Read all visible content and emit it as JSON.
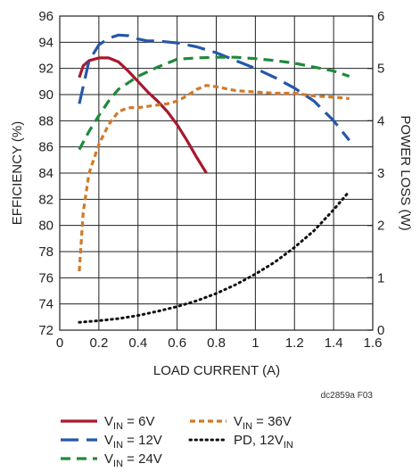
{
  "chart_data": {
    "type": "line",
    "xlabel": "LOAD CURRENT (A)",
    "ylabel": "EFFICIENCY (%)",
    "y2label": "POWER LOSS (W)",
    "xlim": [
      0,
      1.6
    ],
    "ylim": [
      72,
      96
    ],
    "y2lim": [
      0,
      6
    ],
    "x_ticks": [
      "0",
      "0.2",
      "0.4",
      "0.6",
      "0.8",
      "1",
      "1.2",
      "1.4",
      "1.6"
    ],
    "y_ticks": [
      "72",
      "74",
      "76",
      "78",
      "80",
      "82",
      "84",
      "86",
      "88",
      "90",
      "92",
      "94",
      "96"
    ],
    "y2_ticks": [
      "0",
      "1",
      "2",
      "3",
      "4",
      "5",
      "6"
    ],
    "grid": true,
    "credit": "dc2859a F03",
    "series": [
      {
        "name": "V_IN = 6V",
        "legend": {
          "main": "V",
          "sub": "IN",
          "rest": " = 6V"
        },
        "axis": "left",
        "color": "#a8182e",
        "style": "solid",
        "x": [
          0.1,
          0.12,
          0.15,
          0.2,
          0.25,
          0.3,
          0.35,
          0.4,
          0.45,
          0.5,
          0.55,
          0.6,
          0.65,
          0.7,
          0.75
        ],
        "y": [
          91.3,
          92.2,
          92.6,
          92.8,
          92.8,
          92.5,
          91.8,
          91.0,
          90.2,
          89.5,
          88.7,
          87.7,
          86.5,
          85.2,
          84.0
        ]
      },
      {
        "name": "V_IN = 12V",
        "legend": {
          "main": "V",
          "sub": "IN",
          "rest": " = 12V"
        },
        "axis": "left",
        "color": "#2657a8",
        "style": "long-dash",
        "x": [
          0.1,
          0.15,
          0.2,
          0.25,
          0.3,
          0.35,
          0.4,
          0.45,
          0.5,
          0.6,
          0.7,
          0.8,
          0.9,
          1.0,
          1.1,
          1.2,
          1.3,
          1.4,
          1.48
        ],
        "y": [
          89.3,
          92.6,
          93.8,
          94.3,
          94.55,
          94.5,
          94.25,
          94.1,
          94.1,
          93.95,
          93.65,
          93.2,
          92.6,
          92.0,
          91.3,
          90.5,
          89.5,
          88.0,
          86.5
        ]
      },
      {
        "name": "V_IN = 24V",
        "legend": {
          "main": "V",
          "sub": "IN",
          "rest": " = 24V"
        },
        "axis": "left",
        "color": "#1e8a3a",
        "style": "dash",
        "x": [
          0.1,
          0.15,
          0.2,
          0.25,
          0.3,
          0.35,
          0.4,
          0.5,
          0.6,
          0.7,
          0.8,
          0.9,
          1.0,
          1.1,
          1.2,
          1.3,
          1.4,
          1.48
        ],
        "y": [
          85.8,
          87.2,
          88.4,
          89.5,
          90.4,
          90.9,
          91.4,
          92.1,
          92.7,
          92.8,
          92.85,
          92.85,
          92.75,
          92.6,
          92.4,
          92.1,
          91.8,
          91.4
        ]
      },
      {
        "name": "V_IN = 36V",
        "legend": {
          "main": "V",
          "sub": "IN",
          "rest": " = 36V"
        },
        "axis": "left",
        "color": "#d07a2a",
        "style": "short-dash",
        "x": [
          0.1,
          0.12,
          0.15,
          0.2,
          0.25,
          0.3,
          0.35,
          0.4,
          0.45,
          0.5,
          0.55,
          0.6,
          0.65,
          0.7,
          0.75,
          0.8,
          0.9,
          1.0,
          1.1,
          1.2,
          1.3,
          1.4,
          1.48
        ],
        "y": [
          76.5,
          81.0,
          84.0,
          86.2,
          87.7,
          88.7,
          89.0,
          89.0,
          89.1,
          89.2,
          89.3,
          89.5,
          89.9,
          90.4,
          90.7,
          90.6,
          90.3,
          90.2,
          90.1,
          90.1,
          89.9,
          89.8,
          89.7
        ]
      },
      {
        "name": "PD, 12V_IN",
        "legend": {
          "main": "PD, 12V",
          "sub": "IN",
          "rest": ""
        },
        "axis": "right",
        "color": "#111111",
        "style": "dotted",
        "x": [
          0.1,
          0.2,
          0.3,
          0.4,
          0.5,
          0.6,
          0.7,
          0.8,
          0.9,
          1.0,
          1.1,
          1.2,
          1.3,
          1.4,
          1.48
        ],
        "y": [
          0.15,
          0.18,
          0.22,
          0.28,
          0.36,
          0.45,
          0.56,
          0.7,
          0.87,
          1.07,
          1.3,
          1.58,
          1.9,
          2.3,
          2.65
        ]
      }
    ]
  }
}
